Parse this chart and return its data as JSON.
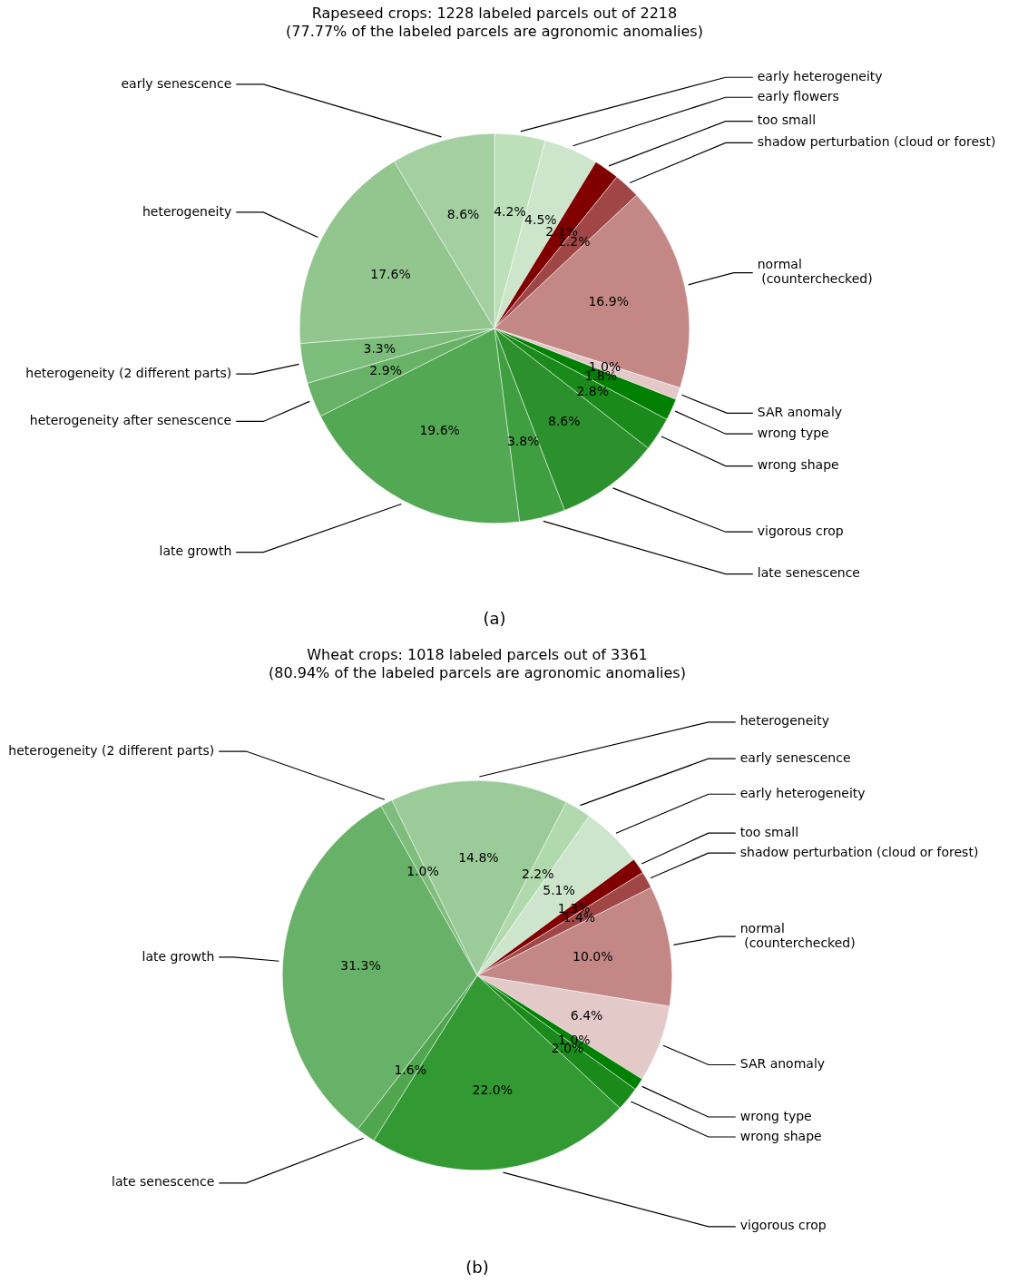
{
  "chart_data": [
    {
      "type": "pie",
      "title": "Rapeseed crops: 1228 labeled parcels out of 2218\n(77.77% of the labeled parcels are agronomic anomalies)",
      "categories": [
        "early heterogeneity",
        "early flowers",
        "too small",
        "shadow perturbation (cloud or forest)",
        "normal\n (counterchecked)",
        "SAR anomaly",
        "wrong type",
        "wrong shape",
        "vigorous crop",
        "late senescence",
        "late growth",
        "heterogeneity after senescence",
        "heterogeneity (2 different parts)",
        "heterogeneity",
        "early senescence"
      ],
      "values": [
        4.2,
        4.5,
        2.1,
        2.2,
        16.9,
        1.0,
        1.8,
        2.8,
        8.6,
        3.8,
        19.6,
        2.9,
        3.3,
        17.6,
        8.6
      ],
      "value_labels": [
        "4.2%",
        "4.5%",
        "2.1%",
        "2.2%",
        "16.9%",
        "1.0%",
        "1.8%",
        "2.8%",
        "8.6%",
        "3.8%",
        "19.6%",
        "2.9%",
        "3.3%",
        "17.6%",
        "8.6%"
      ],
      "colors": [
        "#bde0bb",
        "#cde6cb",
        "#800000",
        "#a04646",
        "#c38886",
        "#e4c9c9",
        "#008000",
        "#1a8a1a",
        "#2c912c",
        "#3f9e3f",
        "#53a853",
        "#68b268",
        "#7dbd7b",
        "#93c68f",
        "#a4d0a1"
      ],
      "legend": false,
      "annotations": [
        "(a)"
      ]
    },
    {
      "type": "pie",
      "title": "Wheat crops: 1018 labeled parcels out of 3361\n(80.94% of the labeled parcels are agronomic anomalies)",
      "categories": [
        "heterogeneity",
        "early senescence",
        "early heterogeneity",
        "too small",
        "shadow perturbation (cloud or forest)",
        "normal\n (counterchecked)",
        "SAR anomaly",
        "wrong type",
        "wrong shape",
        "vigorous crop",
        "late senescence",
        "late growth",
        "heterogeneity (2 different parts)"
      ],
      "values": [
        14.8,
        2.2,
        5.1,
        1.3,
        1.4,
        10.0,
        6.4,
        1.0,
        2.0,
        22.0,
        1.6,
        31.3,
        1.0
      ],
      "value_labels": [
        "14.8%",
        "2.2%",
        "5.1%",
        "1.3%",
        "1.4%",
        "10.0%",
        "6.4%",
        "1.0%",
        "2.0%",
        "22.0%",
        "1.6%",
        "31.3%",
        "1.0%"
      ],
      "colors": [
        "#9bcb98",
        "#b1d9ae",
        "#cde5cc",
        "#800000",
        "#a04646",
        "#c38886",
        "#e4c9c9",
        "#008000",
        "#1a8a1a",
        "#339933",
        "#4fa64f",
        "#68b168",
        "#7fbd7c"
      ],
      "legend": false,
      "annotations": [
        "(b)"
      ]
    }
  ]
}
